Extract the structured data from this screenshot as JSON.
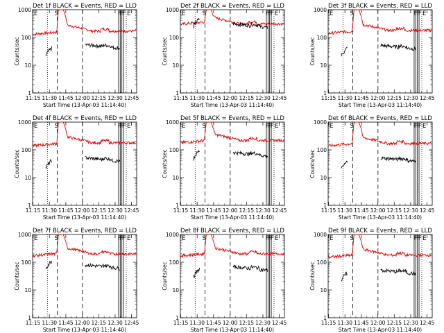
{
  "chart_data": {
    "type": "line",
    "xlabel": "Start Time (13-Apr-03 11:14:40)",
    "ylabel": "Counts/sec",
    "x_ticks": [
      "11:15",
      "11:30",
      "11:45",
      "12:00",
      "12:15",
      "12:30",
      "12:45"
    ],
    "y_ticks": [
      "1",
      "10",
      "100",
      "1000"
    ],
    "x_range_minutes": [
      0,
      95
    ],
    "y_range": [
      1,
      1000
    ],
    "y_scale": "log",
    "colors": {
      "events": "#000000",
      "lld": "#e00000"
    },
    "markers": {
      "start": "E",
      "saa": "S",
      "end": "E",
      "flags": "F"
    },
    "panels": [
      {
        "title": "Det 1f BLACK = Events, RED = LLD",
        "lld_level": 170,
        "lld_start": 130,
        "evt_level": 48,
        "evt_start": 22
      },
      {
        "title": "Det 2f BLACK = Events, RED = LLD",
        "lld_level": 310,
        "lld_start": 300,
        "evt_level": 270,
        "evt_start": 250
      },
      {
        "title": "Det 3f BLACK = Events, RED = LLD",
        "lld_level": 180,
        "lld_start": 140,
        "evt_level": 45,
        "evt_start": 22
      },
      {
        "title": "Det 4f BLACK = Events, RED = LLD",
        "lld_level": 180,
        "lld_start": 140,
        "evt_level": 45,
        "evt_start": 22
      },
      {
        "title": "Det 5f BLACK = Events, RED = LLD",
        "lld_level": 220,
        "lld_start": 180,
        "evt_level": 70,
        "evt_start": 50
      },
      {
        "title": "Det 6f BLACK = Events, RED = LLD",
        "lld_level": 170,
        "lld_start": 140,
        "evt_level": 45,
        "evt_start": 20
      },
      {
        "title": "Det 7f BLACK = Events, RED = LLD",
        "lld_level": 200,
        "lld_start": 170,
        "evt_level": 70,
        "evt_start": 60
      },
      {
        "title": "Det 8f BLACK = Events, RED = LLD",
        "lld_level": 200,
        "lld_start": 170,
        "evt_level": 60,
        "evt_start": 30
      },
      {
        "title": "Det 9f BLACK = Events, RED = LLD",
        "lld_level": 180,
        "lld_start": 150,
        "evt_level": 45,
        "evt_start": 22
      }
    ]
  }
}
